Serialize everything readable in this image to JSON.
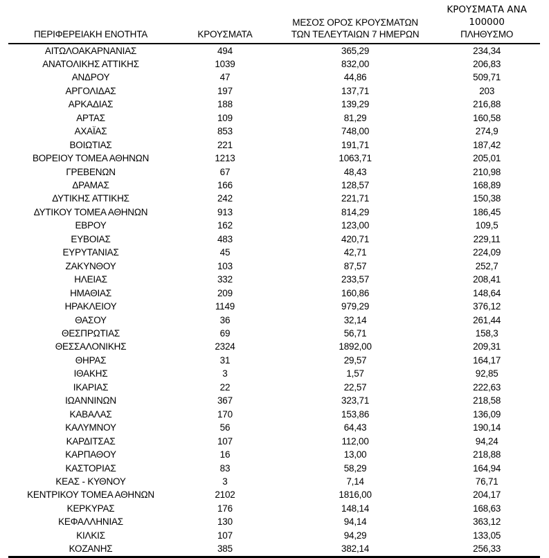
{
  "table": {
    "header": {
      "col1": "ΠΕΡΙΦΕΡΕΙΑΚΗ ΕΝΟΤΗΤΑ",
      "col2": "ΚΡΟΥΣΜΑΤΑ",
      "col3_line1": "ΜΕΣΟΣ ΟΡΟΣ ΚΡΟΥΣΜΑΤΩΝ",
      "col3_line2": "ΤΩΝ ΤΕΛΕΥΤΑΙΩΝ 7 ΗΜΕΡΩΝ",
      "col4_line1": "ΚΡΟΥΣΜΑΤΑ ΑΝΑ 100000",
      "col4_line2": "ΠΛΗΘΥΣΜΟ"
    },
    "rows": [
      [
        "ΑΙΤΩΛΟΑΚΑΡΝΑΝΙΑΣ",
        "494",
        "365,29",
        "234,34"
      ],
      [
        "ΑΝΑΤΟΛΙΚΗΣ ΑΤΤΙΚΗΣ",
        "1039",
        "832,00",
        "206,83"
      ],
      [
        "ΑΝΔΡΟΥ",
        "47",
        "44,86",
        "509,71"
      ],
      [
        "ΑΡΓΟΛΙΔΑΣ",
        "197",
        "137,71",
        "203"
      ],
      [
        "ΑΡΚΑΔΙΑΣ",
        "188",
        "139,29",
        "216,88"
      ],
      [
        "ΑΡΤΑΣ",
        "109",
        "81,29",
        "160,58"
      ],
      [
        "ΑΧΑΪΑΣ",
        "853",
        "748,00",
        "274,9"
      ],
      [
        "ΒΟΙΩΤΙΑΣ",
        "221",
        "191,71",
        "187,42"
      ],
      [
        "ΒΟΡΕΙΟΥ ΤΟΜΕΑ ΑΘΗΝΩΝ",
        "1213",
        "1063,71",
        "205,01"
      ],
      [
        "ΓΡΕΒΕΝΩΝ",
        "67",
        "48,43",
        "210,98"
      ],
      [
        "ΔΡΑΜΑΣ",
        "166",
        "128,57",
        "168,89"
      ],
      [
        "ΔΥΤΙΚΗΣ ΑΤΤΙΚΗΣ",
        "242",
        "221,71",
        "150,38"
      ],
      [
        "ΔΥΤΙΚΟΥ ΤΟΜΕΑ ΑΘΗΝΩΝ",
        "913",
        "814,29",
        "186,45"
      ],
      [
        "ΕΒΡΟΥ",
        "162",
        "123,00",
        "109,5"
      ],
      [
        "ΕΥΒΟΙΑΣ",
        "483",
        "420,71",
        "229,11"
      ],
      [
        "ΕΥΡΥΤΑΝΙΑΣ",
        "45",
        "42,71",
        "224,09"
      ],
      [
        "ΖΑΚΥΝΘΟΥ",
        "103",
        "87,57",
        "252,7"
      ],
      [
        "ΗΛΕΙΑΣ",
        "332",
        "233,57",
        "208,41"
      ],
      [
        "ΗΜΑΘΙΑΣ",
        "209",
        "160,86",
        "148,64"
      ],
      [
        "ΗΡΑΚΛΕΙΟΥ",
        "1149",
        "979,29",
        "376,12"
      ],
      [
        "ΘΑΣΟΥ",
        "36",
        "32,14",
        "261,44"
      ],
      [
        "ΘΕΣΠΡΩΤΙΑΣ",
        "69",
        "56,71",
        "158,3"
      ],
      [
        "ΘΕΣΣΑΛΟΝΙΚΗΣ",
        "2324",
        "1892,00",
        "209,31"
      ],
      [
        "ΘΗΡΑΣ",
        "31",
        "29,57",
        "164,17"
      ],
      [
        "ΙΘΑΚΗΣ",
        "3",
        "1,57",
        "92,85"
      ],
      [
        "ΙΚΑΡΙΑΣ",
        "22",
        "22,57",
        "222,63"
      ],
      [
        "ΙΩΑΝΝΙΝΩΝ",
        "367",
        "323,71",
        "218,58"
      ],
      [
        "ΚΑΒΑΛΑΣ",
        "170",
        "153,86",
        "136,09"
      ],
      [
        "ΚΑΛΥΜΝΟΥ",
        "56",
        "64,43",
        "190,14"
      ],
      [
        "ΚΑΡΔΙΤΣΑΣ",
        "107",
        "112,00",
        "94,24"
      ],
      [
        "ΚΑΡΠΑΘΟΥ",
        "16",
        "13,00",
        "218,88"
      ],
      [
        "ΚΑΣΤΟΡΙΑΣ",
        "83",
        "58,29",
        "164,94"
      ],
      [
        "ΚΕΑΣ - ΚΥΘΝΟΥ",
        "3",
        "7,14",
        "76,71"
      ],
      [
        "ΚΕΝΤΡΙΚΟΥ ΤΟΜΕΑ ΑΘΗΝΩΝ",
        "2102",
        "1816,00",
        "204,17"
      ],
      [
        "ΚΕΡΚΥΡΑΣ",
        "176",
        "148,14",
        "168,63"
      ],
      [
        "ΚΕΦΑΛΛΗΝΙΑΣ",
        "130",
        "94,14",
        "363,12"
      ],
      [
        "ΚΙΛΚΙΣ",
        "107",
        "94,29",
        "133,05"
      ],
      [
        "ΚΟΖΑΝΗΣ",
        "385",
        "382,14",
        "256,33"
      ]
    ],
    "colors": {
      "text": "#000000",
      "rule": "#000000",
      "background": "#ffffff"
    }
  }
}
